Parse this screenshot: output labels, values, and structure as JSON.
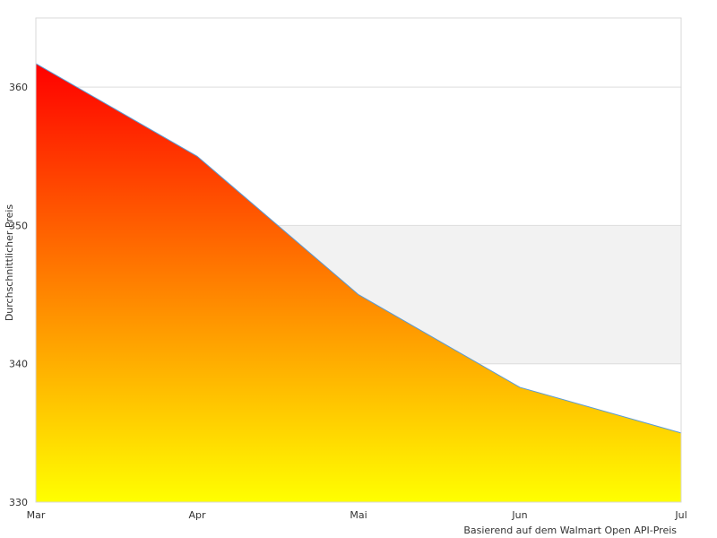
{
  "chart_data": {
    "type": "area",
    "categories": [
      "Mar",
      "Apr",
      "Mai",
      "Jun",
      "Jul"
    ],
    "values": [
      361.7,
      355.0,
      345.0,
      338.3,
      335.0
    ],
    "title": "",
    "xlabel": "",
    "ylabel": "Durchschnittlicher Preis",
    "note": "Basierend auf dem Walmart Open API-Preis",
    "ylim": [
      330,
      365
    ],
    "yticks": [
      330,
      340,
      350,
      360
    ],
    "grid": true,
    "alternating_band": [
      340,
      350
    ],
    "colors": {
      "gradient_top": "#ff0000",
      "gradient_bottom": "#ffff00",
      "line": "#5a9bd4",
      "band": "#f2f2f2",
      "gridline": "#dddddd",
      "frame": "#d9d9d9"
    }
  }
}
